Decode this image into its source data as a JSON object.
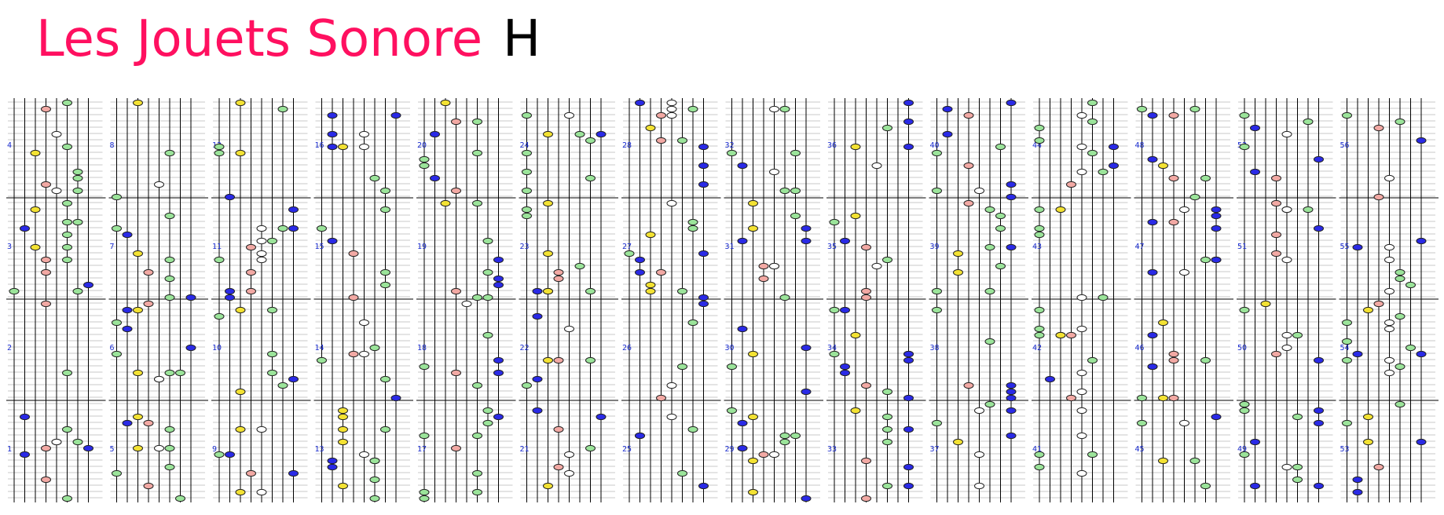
{
  "header": {
    "title": "Les Jouets Sonore",
    "letter": "H"
  },
  "colors": {
    "title": "#ff1060",
    "staff_line": "#000000",
    "ledger_line": "#b9b9b9",
    "measure_number": "#1a2ccf",
    "note_green": "#9be49a",
    "note_blue": "#2a2ae6",
    "note_yellow": "#f3e233",
    "note_pink": "#f2a9a4",
    "note_white": "#ffffff"
  },
  "music": {
    "panels": [
      {
        "measures": [
          "4",
          "3",
          "2",
          "1"
        ]
      },
      {
        "measures": [
          "8",
          "7",
          "6",
          "5"
        ]
      },
      {
        "measures": [
          "12",
          "11",
          "10",
          "9"
        ]
      },
      {
        "measures": [
          "16",
          "15",
          "14",
          "13"
        ]
      },
      {
        "measures": [
          "20",
          "19",
          "18",
          "17"
        ]
      },
      {
        "measures": [
          "24",
          "23",
          "22",
          "21"
        ]
      },
      {
        "measures": [
          "28",
          "27",
          "26",
          "25"
        ]
      },
      {
        "measures": [
          "32",
          "31",
          "30",
          "29"
        ]
      },
      {
        "measures": [
          "36",
          "35",
          "34",
          "33"
        ]
      },
      {
        "measures": [
          "40",
          "39",
          "38",
          "37"
        ]
      },
      {
        "measures": [
          "44",
          "43",
          "42",
          "41"
        ]
      },
      {
        "measures": [
          "48",
          "47",
          "46",
          "45"
        ]
      },
      {
        "measures": [
          "52",
          "51",
          "50",
          "49"
        ]
      },
      {
        "measures": [
          "56",
          "55",
          "54",
          "53"
        ]
      }
    ]
  }
}
